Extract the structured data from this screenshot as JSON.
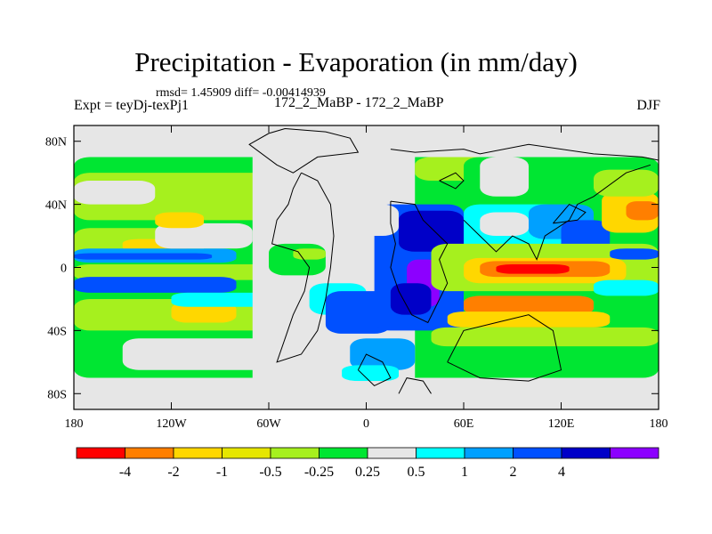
{
  "chart_data": {
    "type": "heatmap",
    "title": "Precipitation - Evaporation (in mm/day)",
    "stats": "rmsd= 1.45909 diff= -0.00414939",
    "left_label": "Expt = teyDj-texPj1",
    "center_label": "172_2_MaBP - 172_2_MaBP",
    "right_label": "DJF",
    "xlim": [
      -180,
      180
    ],
    "ylim": [
      -90,
      90
    ],
    "x_ticks": [
      {
        "value": -180,
        "label": "180"
      },
      {
        "value": -120,
        "label": "120W"
      },
      {
        "value": -60,
        "label": "60W"
      },
      {
        "value": 0,
        "label": "0"
      },
      {
        "value": 60,
        "label": "60E"
      },
      {
        "value": 120,
        "label": "120E"
      },
      {
        "value": 180,
        "label": "180"
      }
    ],
    "y_ticks": [
      {
        "value": 80,
        "label": "80N"
      },
      {
        "value": 40,
        "label": "40N"
      },
      {
        "value": 0,
        "label": "0"
      },
      {
        "value": -40,
        "label": "40S"
      },
      {
        "value": -80,
        "label": "80S"
      }
    ],
    "colorbar": {
      "colors": [
        "#ff0000",
        "#ff7f00",
        "#ffd700",
        "#e6e600",
        "#a6f01e",
        "#00e632",
        "#e6e6e6",
        "#00ffff",
        "#00a0ff",
        "#0050ff",
        "#0000c8",
        "#8c00ff"
      ],
      "labels": [
        {
          "boundary": 1,
          "text": "-4"
        },
        {
          "boundary": 2,
          "text": "-2"
        },
        {
          "boundary": 3,
          "text": "-1"
        },
        {
          "boundary": 4,
          "text": "-0.5"
        },
        {
          "boundary": 5,
          "text": "-0.25"
        },
        {
          "boundary": 6,
          "text": "0.25"
        },
        {
          "boundary": 7,
          "text": "0.5"
        },
        {
          "boundary": 8,
          "text": "1"
        },
        {
          "boundary": 9,
          "text": "2"
        },
        {
          "boundary": 10,
          "text": "4"
        }
      ]
    },
    "regions": [
      {
        "color": "#00e632",
        "lon": [
          -180,
          180
        ],
        "lat": [
          -70,
          70
        ]
      },
      {
        "color": "#e6e6e6",
        "lon": [
          -180,
          180
        ],
        "lat": [
          -90,
          -70
        ]
      },
      {
        "color": "#e6e6e6",
        "lon": [
          -180,
          180
        ],
        "lat": [
          70,
          90
        ]
      },
      {
        "color": "#a6f01e",
        "lon": [
          -180,
          -40
        ],
        "lat": [
          30,
          60
        ]
      },
      {
        "color": "#e6e6e6",
        "lon": [
          -180,
          -130
        ],
        "lat": [
          40,
          55
        ]
      },
      {
        "color": "#e6e6e6",
        "lon": [
          -150,
          -20
        ],
        "lat": [
          -65,
          -45
        ]
      },
      {
        "color": "#a6f01e",
        "lon": [
          -180,
          -60
        ],
        "lat": [
          -40,
          -20
        ]
      },
      {
        "color": "#ffd700",
        "lon": [
          -120,
          -80
        ],
        "lat": [
          -35,
          -22
        ]
      },
      {
        "color": "#a6f01e",
        "lon": [
          -180,
          -100
        ],
        "lat": [
          5,
          25
        ]
      },
      {
        "color": "#ffd700",
        "lon": [
          -150,
          -110
        ],
        "lat": [
          10,
          18
        ]
      },
      {
        "color": "#00a0ff",
        "lon": [
          -180,
          -80
        ],
        "lat": [
          3,
          12
        ]
      },
      {
        "color": "#0050ff",
        "lon": [
          -180,
          -95
        ],
        "lat": [
          5,
          9
        ]
      },
      {
        "color": "#a6f01e",
        "lon": [
          -180,
          -60
        ],
        "lat": [
          -8,
          2
        ]
      },
      {
        "color": "#0050ff",
        "lon": [
          -180,
          -80
        ],
        "lat": [
          -16,
          -6
        ]
      },
      {
        "color": "#00ffff",
        "lon": [
          -120,
          -60
        ],
        "lat": [
          -25,
          -16
        ]
      },
      {
        "color": "#e6e6e6",
        "lon": [
          -130,
          -70
        ],
        "lat": [
          12,
          28
        ]
      },
      {
        "color": "#ffd700",
        "lon": [
          -130,
          -100
        ],
        "lat": [
          25,
          35
        ]
      },
      {
        "color": "#e6e6e6",
        "lon": [
          -70,
          30
        ],
        "lat": [
          -90,
          90
        ]
      },
      {
        "color": "#00e632",
        "lon": [
          -60,
          -25
        ],
        "lat": [
          -5,
          15
        ]
      },
      {
        "color": "#a6f01e",
        "lon": [
          -45,
          -25
        ],
        "lat": [
          5,
          12
        ]
      },
      {
        "color": "#00ffff",
        "lon": [
          -35,
          0
        ],
        "lat": [
          -30,
          -10
        ]
      },
      {
        "color": "#0050ff",
        "lon": [
          -25,
          15
        ],
        "lat": [
          -42,
          -15
        ]
      },
      {
        "color": "#00a0ff",
        "lon": [
          -10,
          30
        ],
        "lat": [
          -65,
          -45
        ]
      },
      {
        "color": "#00ffff",
        "lon": [
          -15,
          20
        ],
        "lat": [
          -72,
          -62
        ]
      },
      {
        "color": "#0050ff",
        "lon": [
          5,
          60
        ],
        "lat": [
          -40,
          40
        ]
      },
      {
        "color": "#0000c8",
        "lon": [
          20,
          60
        ],
        "lat": [
          10,
          36
        ]
      },
      {
        "color": "#8c00ff",
        "lon": [
          25,
          45
        ],
        "lat": [
          -25,
          5
        ]
      },
      {
        "color": "#0000c8",
        "lon": [
          15,
          40
        ],
        "lat": [
          -30,
          -10
        ]
      },
      {
        "color": "#e6e6e6",
        "lon": [
          -10,
          20
        ],
        "lat": [
          20,
          40
        ]
      },
      {
        "color": "#a6f01e",
        "lon": [
          30,
          80
        ],
        "lat": [
          55,
          70
        ]
      },
      {
        "color": "#00e632",
        "lon": [
          60,
          140
        ],
        "lat": [
          40,
          70
        ]
      },
      {
        "color": "#e6e6e6",
        "lon": [
          70,
          100
        ],
        "lat": [
          45,
          70
        ]
      },
      {
        "color": "#00ffff",
        "lon": [
          60,
          120
        ],
        "lat": [
          10,
          40
        ]
      },
      {
        "color": "#e6e6e6",
        "lon": [
          70,
          100
        ],
        "lat": [
          20,
          35
        ]
      },
      {
        "color": "#00a0ff",
        "lon": [
          100,
          140
        ],
        "lat": [
          18,
          40
        ]
      },
      {
        "color": "#0050ff",
        "lon": [
          120,
          150
        ],
        "lat": [
          10,
          30
        ]
      },
      {
        "color": "#00a0ff",
        "lon": [
          40,
          100
        ],
        "lat": [
          -3,
          10
        ]
      },
      {
        "color": "#a6f01e",
        "lon": [
          40,
          180
        ],
        "lat": [
          -15,
          15
        ]
      },
      {
        "color": "#ffd700",
        "lon": [
          60,
          160
        ],
        "lat": [
          -10,
          6
        ]
      },
      {
        "color": "#ff7f00",
        "lon": [
          70,
          150
        ],
        "lat": [
          -6,
          4
        ]
      },
      {
        "color": "#ff0000",
        "lon": [
          80,
          125
        ],
        "lat": [
          -4,
          2
        ]
      },
      {
        "color": "#ff7f00",
        "lon": [
          60,
          140
        ],
        "lat": [
          -30,
          -18
        ]
      },
      {
        "color": "#ffd700",
        "lon": [
          50,
          150
        ],
        "lat": [
          -38,
          -28
        ]
      },
      {
        "color": "#a6f01e",
        "lon": [
          40,
          180
        ],
        "lat": [
          -50,
          -38
        ]
      },
      {
        "color": "#00ffff",
        "lon": [
          140,
          180
        ],
        "lat": [
          -18,
          -8
        ]
      },
      {
        "color": "#0050ff",
        "lon": [
          150,
          180
        ],
        "lat": [
          5,
          12
        ]
      },
      {
        "color": "#ffd700",
        "lon": [
          145,
          180
        ],
        "lat": [
          22,
          48
        ]
      },
      {
        "color": "#ff7f00",
        "lon": [
          160,
          180
        ],
        "lat": [
          30,
          42
        ]
      },
      {
        "color": "#a6f01e",
        "lon": [
          140,
          180
        ],
        "lat": [
          45,
          62
        ]
      },
      {
        "color": "#e6e6e6",
        "lon": [
          -180,
          180
        ],
        "lat": [
          70,
          90
        ]
      },
      {
        "color": "#e6e6e6",
        "lon": [
          -180,
          180
        ],
        "lat": [
          -90,
          -72
        ]
      }
    ],
    "coastline": [
      [
        [
          -50,
          88
        ],
        [
          -25,
          86
        ],
        [
          -10,
          82
        ],
        [
          -5,
          73
        ],
        [
          -30,
          70
        ],
        [
          -45,
          60
        ],
        [
          -55,
          65
        ],
        [
          -72,
          78
        ],
        [
          -60,
          85
        ],
        [
          -50,
          88
        ]
      ],
      [
        [
          -40,
          60
        ],
        [
          -45,
          50
        ],
        [
          -48,
          40
        ],
        [
          -55,
          30
        ],
        [
          -58,
          15
        ],
        [
          -42,
          10
        ],
        [
          -35,
          0
        ],
        [
          -38,
          -15
        ],
        [
          -45,
          -30
        ],
        [
          -50,
          -45
        ],
        [
          -55,
          -60
        ],
        [
          -40,
          -55
        ],
        [
          -30,
          -40
        ],
        [
          -25,
          -20
        ],
        [
          -22,
          0
        ],
        [
          -20,
          20
        ],
        [
          -22,
          40
        ],
        [
          -30,
          55
        ],
        [
          -40,
          60
        ]
      ],
      [
        [
          15,
          75
        ],
        [
          30,
          73
        ],
        [
          60,
          75
        ],
        [
          70,
          72
        ],
        [
          100,
          78
        ],
        [
          140,
          72
        ],
        [
          170,
          70
        ],
        [
          180,
          68
        ]
      ],
      [
        [
          15,
          42
        ],
        [
          15,
          28
        ],
        [
          18,
          15
        ],
        [
          15,
          0
        ],
        [
          20,
          -15
        ],
        [
          28,
          -30
        ],
        [
          38,
          -35
        ],
        [
          50,
          -10
        ],
        [
          45,
          5
        ],
        [
          50,
          15
        ],
        [
          35,
          30
        ],
        [
          30,
          40
        ],
        [
          15,
          42
        ]
      ],
      [
        [
          60,
          30
        ],
        [
          70,
          20
        ],
        [
          80,
          10
        ],
        [
          90,
          20
        ],
        [
          100,
          15
        ],
        [
          105,
          5
        ],
        [
          110,
          20
        ],
        [
          125,
          30
        ],
        [
          130,
          40
        ],
        [
          140,
          45
        ],
        [
          160,
          60
        ],
        [
          175,
          65
        ]
      ],
      [
        [
          115,
          28
        ],
        [
          130,
          30
        ],
        [
          135,
          35
        ],
        [
          125,
          40
        ],
        [
          115,
          28
        ]
      ],
      [
        [
          50,
          -60
        ],
        [
          60,
          -40
        ],
        [
          80,
          -35
        ],
        [
          100,
          -30
        ],
        [
          115,
          -40
        ],
        [
          120,
          -65
        ],
        [
          100,
          -72
        ],
        [
          70,
          -70
        ],
        [
          50,
          -60
        ]
      ],
      [
        [
          20,
          -80
        ],
        [
          25,
          -70
        ],
        [
          35,
          -72
        ],
        [
          40,
          -80
        ]
      ],
      [
        [
          -5,
          -65
        ],
        [
          0,
          -55
        ],
        [
          10,
          -60
        ],
        [
          15,
          -70
        ],
        [
          5,
          -75
        ],
        [
          -5,
          -65
        ]
      ],
      [
        [
          45,
          55
        ],
        [
          55,
          50
        ],
        [
          60,
          55
        ],
        [
          55,
          60
        ],
        [
          45,
          55
        ]
      ]
    ]
  }
}
